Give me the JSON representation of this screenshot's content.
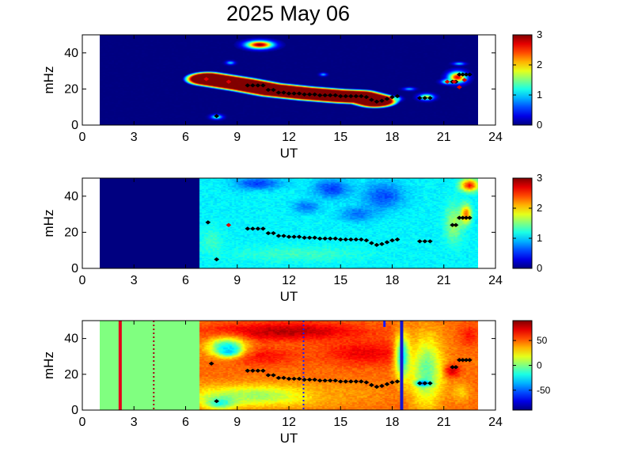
{
  "title": "2025 May 06",
  "chart_data": [
    {
      "type": "heatmap",
      "panel": 1,
      "xlabel": "UT",
      "ylabel": "mHz",
      "xlim": [
        0,
        24
      ],
      "ylim": [
        0,
        50
      ],
      "xticks": [
        "0",
        "3",
        "6",
        "9",
        "12",
        "15",
        "18",
        "21",
        "24"
      ],
      "yticks": [
        "0",
        "20",
        "40"
      ],
      "data_extent": [
        1.0,
        23.0
      ],
      "colorbar": {
        "range": [
          0,
          3
        ],
        "ticks": [
          "0",
          "1",
          "2",
          "3"
        ]
      },
      "background_value": 0,
      "features": [
        {
          "kind": "band",
          "value": 3,
          "points": [
            [
              7.3,
              25.5
            ],
            [
              9.3,
              22.5
            ],
            [
              11,
              19.5
            ],
            [
              13,
              17.5
            ],
            [
              15,
              16
            ],
            [
              16.2,
              15.5
            ],
            [
              17,
              13.5
            ]
          ],
          "half_width": 4.5
        },
        {
          "kind": "blob",
          "value": 3,
          "x": 10.3,
          "y": 44.5,
          "rx": 0.9,
          "ry": 2.5
        },
        {
          "kind": "blob",
          "value": 2.7,
          "x": 21.8,
          "y": 26.5,
          "rx": 0.6,
          "ry": 3.5
        },
        {
          "kind": "blob",
          "value": 1.8,
          "x": 20.0,
          "y": 15.5,
          "rx": 0.5,
          "ry": 2.0
        },
        {
          "kind": "blob",
          "value": 1.5,
          "x": 21.2,
          "y": 24,
          "rx": 0.4,
          "ry": 1.5
        },
        {
          "kind": "blob",
          "value": 1.2,
          "x": 18.3,
          "y": 14.5,
          "rx": 0.3,
          "ry": 1.5
        },
        {
          "kind": "blob",
          "value": 1.3,
          "x": 7.8,
          "y": 4.5,
          "rx": 0.4,
          "ry": 1.5
        },
        {
          "kind": "blob",
          "value": 1.0,
          "x": 8.6,
          "y": 34.5,
          "rx": 0.3,
          "ry": 1.2
        },
        {
          "kind": "blob",
          "value": 0.9,
          "x": 14.0,
          "y": 28,
          "rx": 0.25,
          "ry": 1.0
        },
        {
          "kind": "blob",
          "value": 0.9,
          "x": 19.0,
          "y": 20,
          "rx": 0.4,
          "ry": 1.0
        },
        {
          "kind": "blob",
          "value": 1.0,
          "x": 21.9,
          "y": 34,
          "rx": 0.4,
          "ry": 1.0
        }
      ],
      "black_markers": [
        [
          7.8,
          5
        ],
        [
          9.6,
          22
        ],
        [
          9.9,
          22
        ],
        [
          10.2,
          22
        ],
        [
          10.5,
          22
        ],
        [
          10.8,
          19.5
        ],
        [
          11.1,
          19.5
        ],
        [
          11.4,
          18
        ],
        [
          11.7,
          18
        ],
        [
          12,
          17.5
        ],
        [
          12.3,
          17.5
        ],
        [
          12.6,
          17.5
        ],
        [
          12.9,
          17
        ],
        [
          13.2,
          17
        ],
        [
          13.5,
          17
        ],
        [
          13.8,
          16.5
        ],
        [
          14.1,
          16.5
        ],
        [
          14.4,
          16.5
        ],
        [
          14.7,
          16.5
        ],
        [
          15,
          16
        ],
        [
          15.3,
          16
        ],
        [
          15.6,
          16
        ],
        [
          15.9,
          16
        ],
        [
          16.2,
          16
        ],
        [
          16.5,
          15.5
        ],
        [
          16.8,
          14
        ],
        [
          17.1,
          13
        ],
        [
          17.4,
          13.5
        ],
        [
          17.7,
          14.5
        ],
        [
          18.0,
          15.5
        ],
        [
          18.3,
          16
        ],
        [
          19.6,
          15
        ],
        [
          19.9,
          15
        ],
        [
          20.2,
          15
        ],
        [
          21.5,
          24
        ],
        [
          21.7,
          24
        ],
        [
          21.9,
          28
        ],
        [
          22.1,
          28
        ],
        [
          22.3,
          28
        ],
        [
          22.5,
          28
        ]
      ],
      "red_markers": [
        [
          7.2,
          25.5
        ],
        [
          8.5,
          24
        ],
        [
          21.9,
          21
        ],
        [
          21.2,
          24
        ],
        [
          21.6,
          24
        ],
        [
          22.2,
          25
        ]
      ]
    },
    {
      "type": "heatmap",
      "panel": 2,
      "xlabel": "UT",
      "ylabel": "mHz",
      "xlim": [
        0,
        24
      ],
      "ylim": [
        0,
        50
      ],
      "xticks": [
        "0",
        "3",
        "6",
        "9",
        "12",
        "15",
        "18",
        "21",
        "24"
      ],
      "yticks": [
        "0",
        "20",
        "40"
      ],
      "data_extent": [
        1.0,
        23.0
      ],
      "colorbar": {
        "range": [
          0,
          3
        ],
        "ticks": [
          "0",
          "1",
          "2",
          "3"
        ]
      },
      "background_value": 1.1,
      "gap_until": 6.8,
      "gap_value": 0,
      "features": [
        {
          "kind": "blob",
          "value": 0.55,
          "x": 10.2,
          "y": 47,
          "rx": 1.6,
          "ry": 4
        },
        {
          "kind": "blob",
          "value": 0.55,
          "x": 14.5,
          "y": 44,
          "rx": 1.2,
          "ry": 6
        },
        {
          "kind": "blob",
          "value": 0.6,
          "x": 17.5,
          "y": 40,
          "rx": 1.4,
          "ry": 9
        },
        {
          "kind": "blob",
          "value": 0.7,
          "x": 16,
          "y": 30,
          "rx": 1.2,
          "ry": 5
        },
        {
          "kind": "blob",
          "value": 0.7,
          "x": 13,
          "y": 34,
          "rx": 0.9,
          "ry": 4
        },
        {
          "kind": "blob",
          "value": 1.3,
          "x": 12.5,
          "y": 8,
          "rx": 4.5,
          "ry": 5
        },
        {
          "kind": "blob",
          "value": 1.6,
          "x": 21.6,
          "y": 25,
          "rx": 0.6,
          "ry": 12
        },
        {
          "kind": "blob",
          "value": 2.6,
          "x": 22.5,
          "y": 46,
          "rx": 0.6,
          "ry": 4
        },
        {
          "kind": "blob",
          "value": 1.3,
          "x": 7.5,
          "y": 15,
          "rx": 0.7,
          "ry": 8
        },
        {
          "kind": "blob",
          "value": 2.3,
          "x": 22.3,
          "y": 30,
          "rx": 0.35,
          "ry": 6
        }
      ],
      "black_markers": [
        [
          7.8,
          5
        ],
        [
          7.3,
          25.5
        ],
        [
          9.6,
          22
        ],
        [
          9.9,
          22
        ],
        [
          10.2,
          22
        ],
        [
          10.5,
          22
        ],
        [
          10.8,
          19.5
        ],
        [
          11.1,
          19.5
        ],
        [
          11.4,
          18
        ],
        [
          11.7,
          18
        ],
        [
          12,
          17.5
        ],
        [
          12.3,
          17.5
        ],
        [
          12.6,
          17.5
        ],
        [
          12.9,
          17
        ],
        [
          13.2,
          17
        ],
        [
          13.5,
          17
        ],
        [
          13.8,
          16.5
        ],
        [
          14.1,
          16.5
        ],
        [
          14.4,
          16.5
        ],
        [
          14.7,
          16.5
        ],
        [
          15,
          16
        ],
        [
          15.3,
          16
        ],
        [
          15.6,
          16
        ],
        [
          15.9,
          16
        ],
        [
          16.2,
          16
        ],
        [
          16.5,
          15.5
        ],
        [
          16.8,
          14
        ],
        [
          17.1,
          13
        ],
        [
          17.4,
          13.5
        ],
        [
          17.7,
          14.5
        ],
        [
          18.0,
          15.5
        ],
        [
          18.3,
          16
        ],
        [
          19.6,
          15
        ],
        [
          19.9,
          15
        ],
        [
          20.2,
          15
        ],
        [
          21.5,
          24
        ],
        [
          21.7,
          24
        ],
        [
          21.9,
          28
        ],
        [
          22.1,
          28
        ],
        [
          22.3,
          28
        ],
        [
          22.5,
          28
        ]
      ],
      "red_markers": [
        [
          8.5,
          24
        ]
      ]
    },
    {
      "type": "heatmap",
      "panel": 3,
      "xlabel": "UT",
      "ylabel": "mHz",
      "xlim": [
        0,
        24
      ],
      "ylim": [
        0,
        50
      ],
      "xticks": [
        "0",
        "3",
        "6",
        "9",
        "12",
        "15",
        "18",
        "21",
        "24"
      ],
      "yticks": [
        "0",
        "20",
        "40"
      ],
      "data_extent": [
        1.0,
        23.0
      ],
      "colorbar": {
        "range": [
          -90,
          90
        ],
        "ticks": [
          "-50",
          "0",
          "50"
        ]
      },
      "background_value": 48,
      "gap_until": 6.8,
      "gap_value": 0,
      "features": [
        {
          "kind": "blob",
          "value": 80,
          "x": 12,
          "y": 44,
          "rx": 5,
          "ry": 6
        },
        {
          "kind": "blob",
          "value": 70,
          "x": 16.5,
          "y": 32,
          "rx": 3,
          "ry": 8
        },
        {
          "kind": "blob",
          "value": 65,
          "x": 10.5,
          "y": 30,
          "rx": 2.5,
          "ry": 6
        },
        {
          "kind": "blob",
          "value": -55,
          "x": 8.5,
          "y": 33,
          "rx": 0.6,
          "ry": 3
        },
        {
          "kind": "blob",
          "value": -25,
          "x": 8.4,
          "y": 35,
          "rx": 1.2,
          "ry": 6
        },
        {
          "kind": "blob",
          "value": 5,
          "x": 10,
          "y": 8,
          "rx": 5,
          "ry": 7
        },
        {
          "kind": "blob",
          "value": -20,
          "x": 8.0,
          "y": 4,
          "rx": 1.0,
          "ry": 4
        },
        {
          "kind": "blob",
          "value": -5,
          "x": 20,
          "y": 22,
          "rx": 1.1,
          "ry": 22
        },
        {
          "kind": "blob",
          "value": -55,
          "x": 19.8,
          "y": 15,
          "rx": 0.5,
          "ry": 2
        },
        {
          "kind": "blob",
          "value": -25,
          "x": 18.6,
          "y": 30,
          "rx": 0.5,
          "ry": 14
        },
        {
          "kind": "blob",
          "value": 75,
          "x": 21.5,
          "y": 22,
          "rx": 0.5,
          "ry": 4
        },
        {
          "kind": "blob",
          "value": 65,
          "x": 22.5,
          "y": 42,
          "rx": 0.6,
          "ry": 7
        },
        {
          "kind": "blob",
          "value": 30,
          "x": 22,
          "y": 10,
          "rx": 0.6,
          "ry": 6
        },
        {
          "kind": "blob",
          "value": 40,
          "x": 15,
          "y": 10,
          "rx": 2.5,
          "ry": 6
        }
      ],
      "vertical_lines": [
        {
          "x": 2.2,
          "color": "#e4001a",
          "style": "solid",
          "width": 4
        },
        {
          "x": 4.15,
          "color": "#a60016",
          "style": "dotted",
          "width": 2
        },
        {
          "x": 12.85,
          "color": "#1a1aff",
          "style": "dotted",
          "width": 2
        },
        {
          "x": 17.55,
          "color": "#1a1aff",
          "style": "partial",
          "width": 3
        },
        {
          "x": 18.55,
          "color": "#1515d0",
          "style": "solid",
          "width": 4
        }
      ],
      "black_markers": [
        [
          7.8,
          5
        ],
        [
          7.5,
          26
        ],
        [
          9.6,
          22
        ],
        [
          9.9,
          22
        ],
        [
          10.2,
          22
        ],
        [
          10.5,
          22
        ],
        [
          10.8,
          19.5
        ],
        [
          11.1,
          19.5
        ],
        [
          11.4,
          18
        ],
        [
          11.7,
          18
        ],
        [
          12,
          17.5
        ],
        [
          12.3,
          17.5
        ],
        [
          12.6,
          17.5
        ],
        [
          12.9,
          17
        ],
        [
          13.2,
          17
        ],
        [
          13.5,
          17
        ],
        [
          13.8,
          16.5
        ],
        [
          14.1,
          16.5
        ],
        [
          14.4,
          16.5
        ],
        [
          14.7,
          16.5
        ],
        [
          15,
          16
        ],
        [
          15.3,
          16
        ],
        [
          15.6,
          16
        ],
        [
          15.9,
          16
        ],
        [
          16.2,
          16
        ],
        [
          16.5,
          15.5
        ],
        [
          16.8,
          14
        ],
        [
          17.1,
          13
        ],
        [
          17.4,
          13.5
        ],
        [
          17.7,
          14.5
        ],
        [
          18.0,
          15.5
        ],
        [
          18.3,
          16
        ],
        [
          19.6,
          15
        ],
        [
          19.9,
          15
        ],
        [
          20.2,
          15
        ],
        [
          21.5,
          24
        ],
        [
          21.7,
          24
        ],
        [
          21.9,
          28
        ],
        [
          22.1,
          28
        ],
        [
          22.3,
          28
        ],
        [
          22.5,
          28
        ]
      ],
      "red_markers": []
    }
  ]
}
